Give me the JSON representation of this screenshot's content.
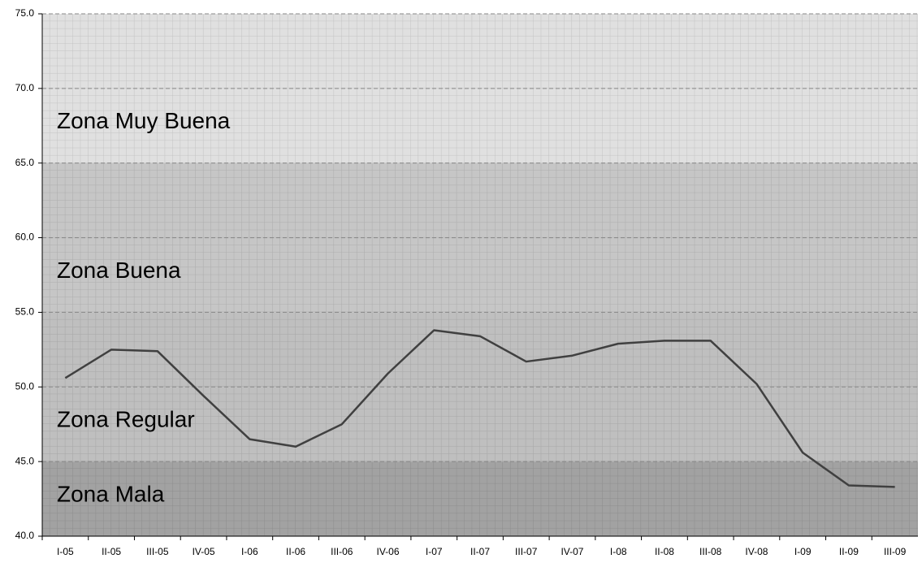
{
  "chart_data": {
    "type": "line",
    "categories": [
      "I-05",
      "II-05",
      "III-05",
      "IV-05",
      "I-06",
      "II-06",
      "III-06",
      "IV-06",
      "I-07",
      "II-07",
      "III-07",
      "IV-07",
      "I-08",
      "II-08",
      "III-08",
      "IV-08",
      "I-09",
      "II-09",
      "III-09"
    ],
    "series": [
      {
        "color": "#404040",
        "values": [
          50.6,
          52.5,
          52.4,
          49.4,
          46.5,
          46.0,
          47.5,
          50.9,
          53.8,
          53.4,
          51.7,
          52.1,
          52.9,
          53.1,
          53.1,
          50.2,
          45.6,
          43.4,
          43.3
        ]
      }
    ],
    "zones": [
      {
        "label": "Zona Muy Buena",
        "from": 65,
        "to": 75,
        "color": "#e0e0e0"
      },
      {
        "label": "Zona Buena",
        "from": 55,
        "to": 65,
        "color": "#c6c6c6"
      },
      {
        "label": "Zona Regular",
        "from": 45,
        "to": 55,
        "color": "#bfbfbf"
      },
      {
        "label": "Zona Mala",
        "from": 40,
        "to": 45,
        "color": "#a2a2a2"
      }
    ],
    "ylim": [
      40,
      75
    ],
    "yticks": [
      {
        "value": 40,
        "label": "40.0"
      },
      {
        "value": 45,
        "label": "45.0"
      },
      {
        "value": 50,
        "label": "50.0"
      },
      {
        "value": 55,
        "label": "55.0"
      },
      {
        "value": 60,
        "label": "60.0"
      },
      {
        "value": 65,
        "label": "65.0"
      },
      {
        "value": 70,
        "label": "70.0"
      },
      {
        "value": 75,
        "label": "75.0"
      }
    ],
    "grid": true
  }
}
